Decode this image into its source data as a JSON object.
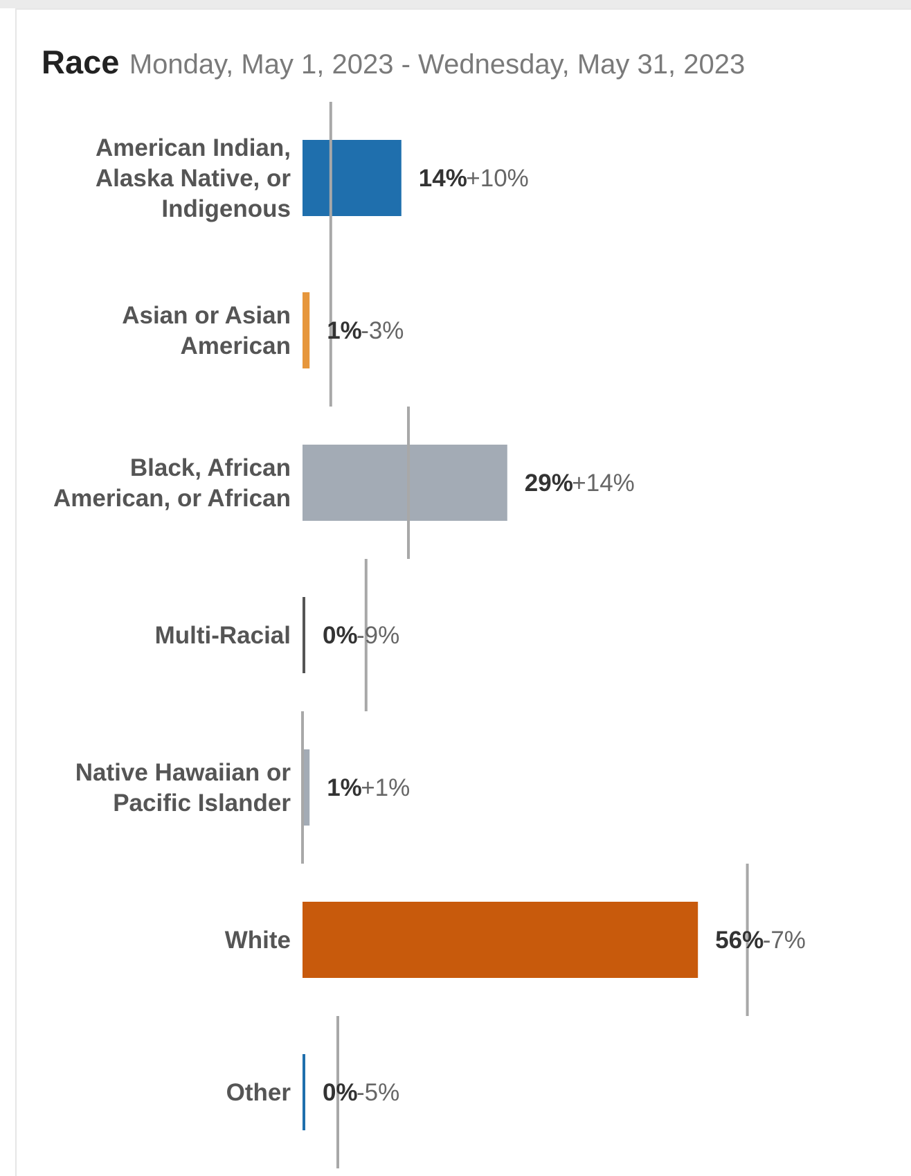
{
  "chart_data": {
    "type": "bar",
    "orientation": "horizontal",
    "title": "Race",
    "subtitle": "Monday, May 1, 2023 - Wednesday, May 31, 2023",
    "categories": [
      "American Indian, Alaska Native, or Indigenous",
      "Asian or Asian American",
      "Black, African American, or African",
      "Multi-Racial",
      "Native Hawaiian or Pacific Islander",
      "White",
      "Other"
    ],
    "category_label_lines": [
      [
        "American Indian,",
        "Alaska Native, or",
        "Indigenous"
      ],
      [
        "Asian or Asian",
        "American"
      ],
      [
        "Black, African",
        "American, or African"
      ],
      [
        "Multi-Racial"
      ],
      [
        "Native Hawaiian or",
        "Pacific Islander"
      ],
      [
        "White"
      ],
      [
        "Other"
      ]
    ],
    "values": [
      14,
      1,
      29,
      0,
      1,
      56,
      0
    ],
    "value_labels": [
      "14%",
      "1%",
      "29%",
      "0%",
      "1%",
      "56%",
      "0%"
    ],
    "change_labels": [
      "+10%",
      "-3%",
      "+14%",
      "-9%",
      "+1%",
      "-7%",
      "-5%"
    ],
    "reference_values": [
      4,
      4,
      15,
      9,
      0,
      63,
      5
    ],
    "colors": [
      "#1f6fad",
      "#e6963c",
      "#a3abb5",
      "#555555",
      "#a3abb5",
      "#c85a0c",
      "#1f6fad"
    ],
    "reference_line_color": "#a8a8a8",
    "xlim": [
      0,
      65
    ],
    "grid": false,
    "legend": "none"
  }
}
